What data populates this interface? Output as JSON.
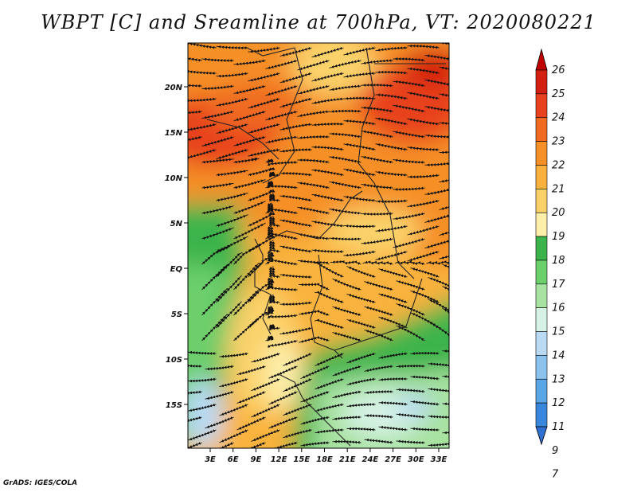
{
  "title": "WBPT [C] and Sreamline at 700hPa, VT: 2020080221",
  "credit": "GrADS: IGES/COLA",
  "map": {
    "lon_labels": [
      "3E",
      "6E",
      "9E",
      "12E",
      "15E",
      "18E",
      "21E",
      "24E",
      "27E",
      "30E",
      "33E"
    ],
    "lat_labels": [
      "20N",
      "15N",
      "10N",
      "5N",
      "EQ",
      "5S",
      "10S",
      "15S"
    ],
    "variable": "wet-bulb potential temperature",
    "units": "C",
    "level": "700hPa",
    "overlay": "streamlines"
  },
  "colorbar": {
    "labels": [
      "26",
      "25",
      "24",
      "23",
      "22",
      "21",
      "20",
      "19",
      "18",
      "17",
      "16",
      "15",
      "14",
      "13",
      "12",
      "11",
      "9",
      "7"
    ],
    "colors": [
      "#c00000",
      "#d42010",
      "#e8421e",
      "#f06a22",
      "#f58f27",
      "#f9b23d",
      "#fbd26a",
      "#fdeea8",
      "#3cb44b",
      "#6ccf6c",
      "#a8e2a0",
      "#d5f2e4",
      "#b8daf4",
      "#8cc2ee",
      "#5aa6e6",
      "#3a86dc",
      "#2f6fd0"
    ]
  }
}
